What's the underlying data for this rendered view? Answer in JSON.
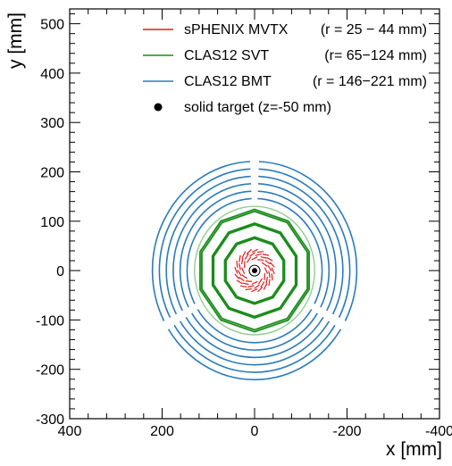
{
  "chart_data": {
    "type": "scatter",
    "title": "",
    "xlabel": "x [mm]",
    "ylabel": "y [mm]",
    "xlim": [
      400,
      -400
    ],
    "ylim": [
      -300,
      530
    ],
    "x_reversed": true,
    "x_ticks": [
      400,
      200,
      0,
      -200,
      -400
    ],
    "x_tick_labels": [
      "400",
      "200",
      "0",
      "-200",
      "-400"
    ],
    "y_ticks": [
      -300,
      -200,
      -100,
      0,
      100,
      200,
      300,
      400,
      500
    ],
    "y_tick_labels": [
      "-300",
      "-200",
      "-100",
      "0",
      "100",
      "200",
      "300",
      "400",
      "500"
    ],
    "grid": false,
    "legend_position": "top-right",
    "legend": [
      {
        "key": "mvtx",
        "name": "sPHENIX MVTX",
        "range": "(r =  25 − 44 mm)",
        "color": "#e31a1c",
        "marker": "line"
      },
      {
        "key": "svt",
        "name": "CLAS12 SVT",
        "range": "(r=  65−124 mm)",
        "color": "#1a8c1a",
        "marker": "line"
      },
      {
        "key": "bmt",
        "name": "CLAS12 BMT",
        "range": "(r = 146−221 mm)",
        "color": "#2b7bb9",
        "marker": "line"
      },
      {
        "key": "target",
        "name": "solid target (z=-50 mm)",
        "range": "",
        "color": "#000000",
        "marker": "dot"
      }
    ],
    "series": [
      {
        "key": "mvtx",
        "shape": "pinwheel",
        "color": "#e31a1c",
        "layers_r_mm": [
          25,
          33,
          40
        ],
        "staves_per_layer": [
          12,
          16,
          20
        ]
      },
      {
        "key": "svt",
        "shape": "polygons",
        "color": "#1a8c1a",
        "sides": 10,
        "layers_r_mm": [
          65,
          68,
          93,
          96,
          120,
          124
        ],
        "outer_circle_r_mm": 130,
        "outer_circle_color": "#8fce8f"
      },
      {
        "key": "bmt",
        "shape": "arc-sectors",
        "color": "#2b7bb9",
        "layers_r_mm": [
          146,
          161,
          176,
          191,
          206,
          221
        ],
        "gap_angles_deg": [
          90,
          210,
          330
        ],
        "gap_half_width_deg": 2.5
      },
      {
        "key": "target",
        "shape": "point",
        "color": "#000000",
        "x": 0,
        "y": 0
      }
    ]
  }
}
